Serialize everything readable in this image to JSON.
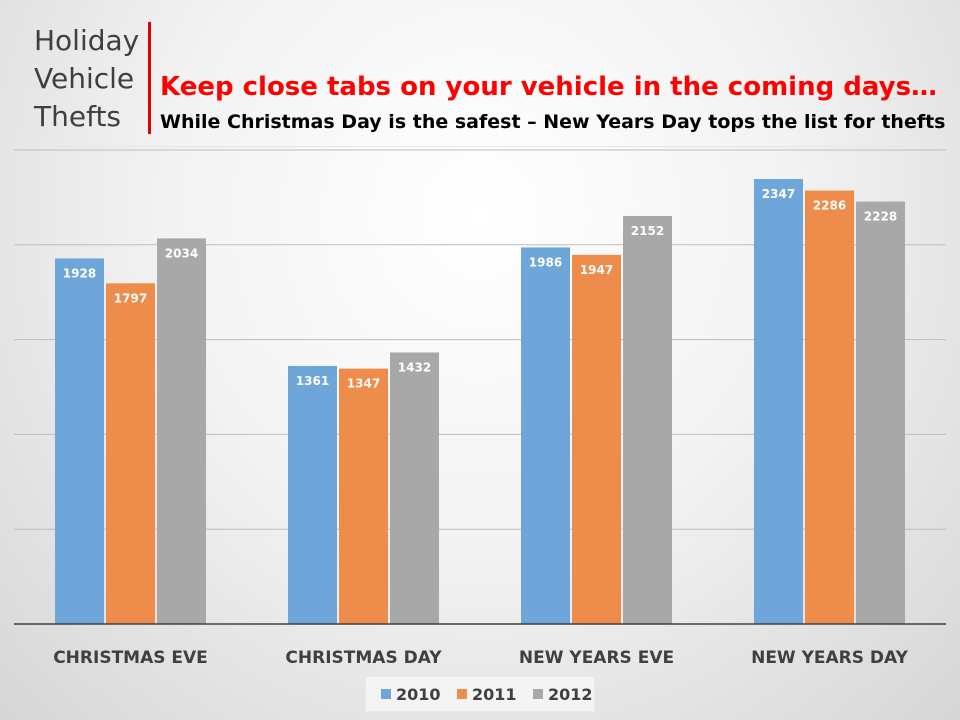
{
  "title": {
    "lines": [
      "Holiday",
      "Vehicle",
      "Thefts"
    ]
  },
  "headline": "Keep close tabs on your vehicle in the coming days…",
  "subheadline": "While Christmas Day is the safest – New Years Day tops the list for thefts",
  "chart_data": {
    "type": "bar",
    "categories": [
      "CHRISTMAS EVE",
      "CHRISTMAS DAY",
      "NEW YEARS EVE",
      "NEW YEARS DAY"
    ],
    "series": [
      {
        "name": "2010",
        "color": "#6fa6da",
        "values": [
          1928,
          1361,
          1986,
          2347
        ]
      },
      {
        "name": "2011",
        "color": "#ee8c4c",
        "values": [
          1797,
          1347,
          1947,
          2286
        ]
      },
      {
        "name": "2012",
        "color": "#a8a8a8",
        "values": [
          2034,
          1432,
          2152,
          2228
        ]
      }
    ],
    "title": "",
    "xlabel": "",
    "ylabel": "",
    "ylim": [
      0,
      2500
    ],
    "grid": true,
    "legend": "bottom",
    "data_labels": true
  }
}
